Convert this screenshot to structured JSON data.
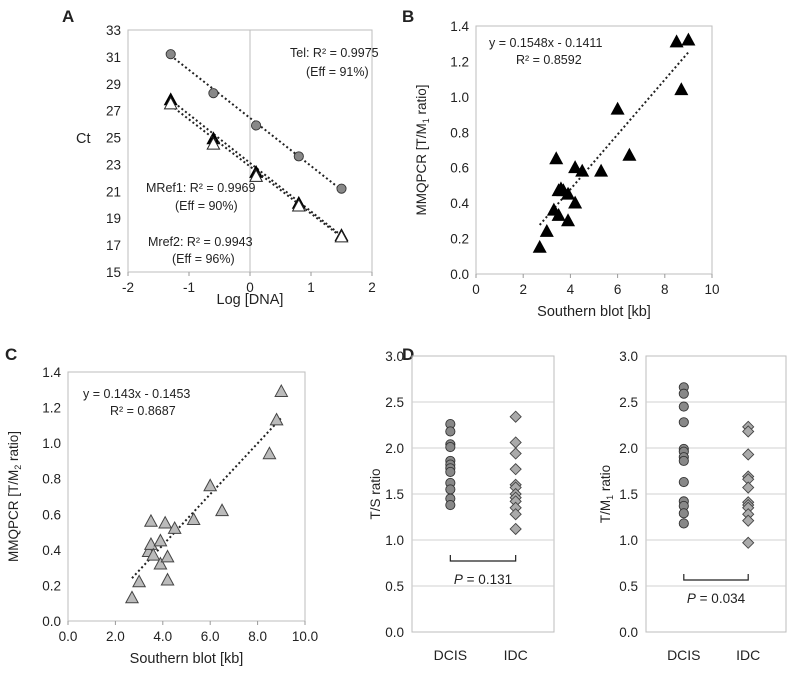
{
  "panels": {
    "a": "A",
    "b": "B",
    "c": "C",
    "d": "D"
  },
  "chart_data": [
    {
      "id": "A",
      "type": "scatter",
      "xlabel": "Log [DNA]",
      "ylabel": "Ct",
      "xlim": [
        -2,
        2
      ],
      "ylim": [
        15,
        33
      ],
      "xticks": [
        "-2",
        "-1",
        "0",
        "1",
        "2"
      ],
      "yticks": [
        "15",
        "17",
        "19",
        "21",
        "23",
        "25",
        "27",
        "29",
        "31",
        "33"
      ],
      "series": [
        {
          "name": "Tel",
          "marker": "circle",
          "x": [
            -1.3,
            -0.6,
            0.1,
            0.8,
            1.5
          ],
          "y": [
            31.2,
            28.3,
            25.9,
            23.6,
            21.2
          ],
          "fit": {
            "x": [
              -1.3,
              1.5
            ],
            "y": [
              31.1,
              21.1
            ]
          },
          "annotation": [
            "Tel: R² = 0.9975",
            "(Eff = 91%)"
          ]
        },
        {
          "name": "MRef1",
          "marker": "triangle-filled",
          "x": [
            -1.3,
            -0.6,
            0.1,
            0.8,
            1.5
          ],
          "y": [
            27.8,
            24.9,
            22.4,
            20.1,
            17.7
          ],
          "fit": {
            "x": [
              -1.3,
              1.5
            ],
            "y": [
              27.8,
              17.7
            ]
          },
          "annotation": [
            "MRef1: R² = 0.9969",
            "(Eff = 90%)"
          ]
        },
        {
          "name": "Mref2",
          "marker": "triangle-open",
          "x": [
            -1.3,
            -0.6,
            0.1,
            0.8,
            1.5
          ],
          "y": [
            27.5,
            24.5,
            22.1,
            19.9,
            17.6
          ],
          "fit": {
            "x": [
              -1.3,
              1.5
            ],
            "y": [
              27.4,
              17.6
            ]
          },
          "annotation": [
            "Mref2: R² = 0.9943",
            "(Eff = 96%)"
          ]
        }
      ]
    },
    {
      "id": "B",
      "type": "scatter",
      "xlabel": "Southern blot [kb]",
      "ylabel": "MMQPCR [T/M",
      "ylabel_sub": "1",
      "ylabel_end": " ratio]",
      "xlim": [
        0,
        10
      ],
      "ylim": [
        0,
        1.4
      ],
      "xticks": [
        "0",
        "2",
        "4",
        "6",
        "8",
        "10"
      ],
      "yticks": [
        "0.0",
        "0.2",
        "0.4",
        "0.6",
        "0.8",
        "1.0",
        "1.2",
        "1.4"
      ],
      "series": [
        {
          "name": "T/M1",
          "marker": "triangle-black",
          "x": [
            2.7,
            3.0,
            3.3,
            3.4,
            3.5,
            3.5,
            3.6,
            3.7,
            3.9,
            3.9,
            4.2,
            4.2,
            4.5,
            5.3,
            6.0,
            6.5,
            8.5,
            8.7,
            9.0
          ],
          "y": [
            0.15,
            0.24,
            0.36,
            0.65,
            0.47,
            0.33,
            0.48,
            0.47,
            0.45,
            0.3,
            0.6,
            0.4,
            0.58,
            0.58,
            0.93,
            0.67,
            1.31,
            1.04,
            1.32
          ],
          "fit": {
            "x": [
              2.7,
              9.0
            ],
            "y": [
              0.277,
              1.252
            ]
          }
        }
      ],
      "equation": [
        "y = 0.1548x - 0.1411",
        "R² = 0.8592"
      ]
    },
    {
      "id": "C",
      "type": "scatter",
      "xlabel": "Southern blot [kb]",
      "ylabel": "MMQPCR [T/M",
      "ylabel_sub": "2",
      "ylabel_end": " ratio]",
      "xlim": [
        0,
        10
      ],
      "ylim": [
        0,
        1.4
      ],
      "xticks": [
        "0.0",
        "2.0",
        "4.0",
        "6.0",
        "8.0",
        "10.0"
      ],
      "yticks": [
        "0.0",
        "0.2",
        "0.4",
        "0.6",
        "0.8",
        "1.0",
        "1.2",
        "1.4"
      ],
      "series": [
        {
          "name": "T/M2",
          "marker": "triangle-gray",
          "x": [
            2.7,
            3.0,
            3.4,
            3.5,
            3.5,
            3.6,
            3.9,
            3.9,
            4.1,
            4.2,
            4.2,
            4.5,
            5.3,
            6.0,
            6.5,
            8.5,
            8.8,
            9.0
          ],
          "y": [
            0.13,
            0.22,
            0.39,
            0.56,
            0.43,
            0.37,
            0.32,
            0.45,
            0.55,
            0.36,
            0.23,
            0.52,
            0.57,
            0.76,
            0.62,
            0.94,
            1.13,
            1.29
          ],
          "fit": {
            "x": [
              2.7,
              9.0
            ],
            "y": [
              0.241,
              1.142
            ]
          }
        }
      ],
      "equation": [
        "y = 0.143x - 0.1453",
        "R² = 0.8687"
      ]
    },
    {
      "id": "D1",
      "type": "scatter",
      "ylabel": "T/S ratio",
      "ylim": [
        0,
        3
      ],
      "yticks": [
        "0.0",
        "0.5",
        "1.0",
        "1.5",
        "2.0",
        "2.5",
        "3.0"
      ],
      "categories": [
        "DCIS",
        "IDC"
      ],
      "series": [
        {
          "name": "DCIS",
          "marker": "circle",
          "values": [
            2.26,
            2.18,
            2.04,
            2.01,
            1.86,
            1.82,
            1.78,
            1.74,
            1.62,
            1.55,
            1.45,
            1.38
          ]
        },
        {
          "name": "IDC",
          "marker": "diamond",
          "values": [
            2.34,
            2.06,
            1.94,
            1.77,
            1.6,
            1.57,
            1.5,
            1.46,
            1.42,
            1.35,
            1.28,
            1.12
          ]
        }
      ],
      "pvalue": {
        "label": "P",
        "text": " = 0.131"
      }
    },
    {
      "id": "D2",
      "type": "scatter",
      "ylabel": "T/M",
      "ylabel_sub": "1",
      "ylabel_end": " ratio",
      "ylim": [
        0,
        3
      ],
      "yticks": [
        "0.0",
        "0.5",
        "1.0",
        "1.5",
        "2.0",
        "2.5",
        "3.0"
      ],
      "categories": [
        "DCIS",
        "IDC"
      ],
      "series": [
        {
          "name": "DCIS",
          "marker": "circle",
          "values": [
            2.66,
            2.59,
            2.45,
            2.28,
            1.99,
            1.96,
            1.9,
            1.86,
            1.63,
            1.42,
            1.37,
            1.29,
            1.18
          ]
        },
        {
          "name": "IDC",
          "marker": "diamond",
          "values": [
            2.23,
            2.18,
            1.93,
            1.69,
            1.66,
            1.57,
            1.41,
            1.38,
            1.35,
            1.28,
            1.21,
            0.97
          ]
        }
      ],
      "pvalue": {
        "label": "P",
        "text": " = 0.034"
      }
    }
  ]
}
